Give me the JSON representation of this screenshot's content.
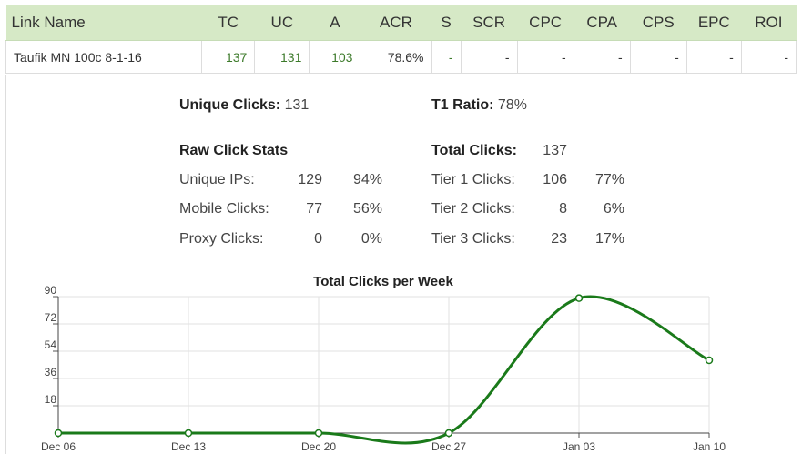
{
  "table": {
    "headers": [
      "Link Name",
      "TC",
      "UC",
      "A",
      "ACR",
      "S",
      "SCR",
      "CPC",
      "CPA",
      "CPS",
      "EPC",
      "ROI"
    ],
    "row": [
      "Taufik MN 100c 8-1-16",
      "137",
      "131",
      "103",
      "78.6%",
      "-",
      "-",
      "-",
      "-",
      "-",
      "-",
      "-"
    ]
  },
  "summary": {
    "unique_clicks_label": "Unique Clicks:",
    "unique_clicks_value": "131",
    "t1_ratio_label": "T1 Ratio:",
    "t1_ratio_value": "78%"
  },
  "raw": {
    "title": "Raw Click Stats",
    "rows": [
      {
        "label": "Unique IPs:",
        "value": "129",
        "pct": "94%"
      },
      {
        "label": "Mobile Clicks:",
        "value": "77",
        "pct": "56%"
      },
      {
        "label": "Proxy Clicks:",
        "value": "0",
        "pct": "0%"
      }
    ]
  },
  "total": {
    "title": "Total Clicks:",
    "value": "137",
    "rows": [
      {
        "label": "Tier 1 Clicks:",
        "value": "106",
        "pct": "77%"
      },
      {
        "label": "Tier 2 Clicks:",
        "value": "8",
        "pct": "6%"
      },
      {
        "label": "Tier 3 Clicks:",
        "value": "23",
        "pct": "17%"
      }
    ]
  },
  "colors": {
    "line": "#1a7a1a",
    "header_bg": "#d6e9c6",
    "value_green": "#3c7a2a"
  },
  "chart_data": {
    "type": "line",
    "title": "Total Clicks per Week",
    "x": [
      "Dec 06",
      "Dec 13",
      "Dec 20",
      "Dec 27",
      "Jan 03",
      "Jan 10"
    ],
    "series": [
      {
        "values": [
          0,
          0,
          0,
          0,
          89,
          48
        ]
      }
    ],
    "yticks": [
      18,
      36,
      54,
      72,
      90
    ],
    "ylim": [
      0,
      90
    ],
    "grid": true,
    "smooth": true
  }
}
